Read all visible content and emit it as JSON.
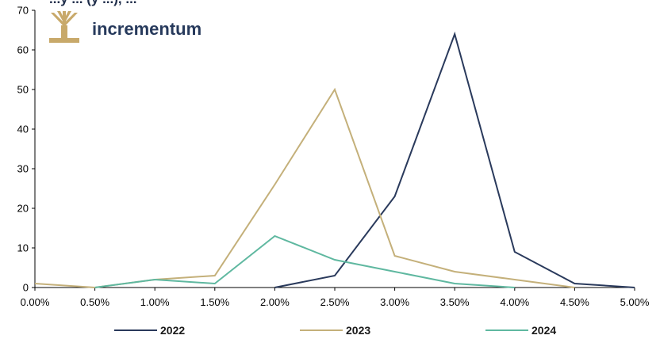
{
  "logo": {
    "name": "tree-logo-icon",
    "text": "incrementum",
    "icon_color": "#c8a96a",
    "text_color": "#273a5c"
  },
  "chart_data": {
    "type": "line",
    "title": "...y ... (y ...), ...",
    "xlabel": "",
    "ylabel": "",
    "x": [
      "0.00%",
      "0.50%",
      "1.00%",
      "1.50%",
      "2.00%",
      "2.50%",
      "3.00%",
      "3.50%",
      "4.00%",
      "4.50%",
      "5.00%"
    ],
    "ylim": [
      0,
      70
    ],
    "yticks": [
      "0",
      "10",
      "20",
      "30",
      "40",
      "50",
      "60",
      "70"
    ],
    "grid": false,
    "legend_position": "bottom",
    "series": [
      {
        "name": "2022",
        "color": "#2a3a5c",
        "values": [
          null,
          null,
          null,
          null,
          0,
          3,
          23,
          64,
          9,
          1,
          0
        ]
      },
      {
        "name": "2023",
        "color": "#c4b07a",
        "values": [
          1,
          0,
          2,
          3,
          26,
          50,
          8,
          4,
          2,
          0,
          null
        ]
      },
      {
        "name": "2024",
        "color": "#5fb8a0",
        "values": [
          null,
          0,
          2,
          1,
          13,
          7,
          4,
          1,
          0,
          null,
          null
        ]
      }
    ]
  }
}
